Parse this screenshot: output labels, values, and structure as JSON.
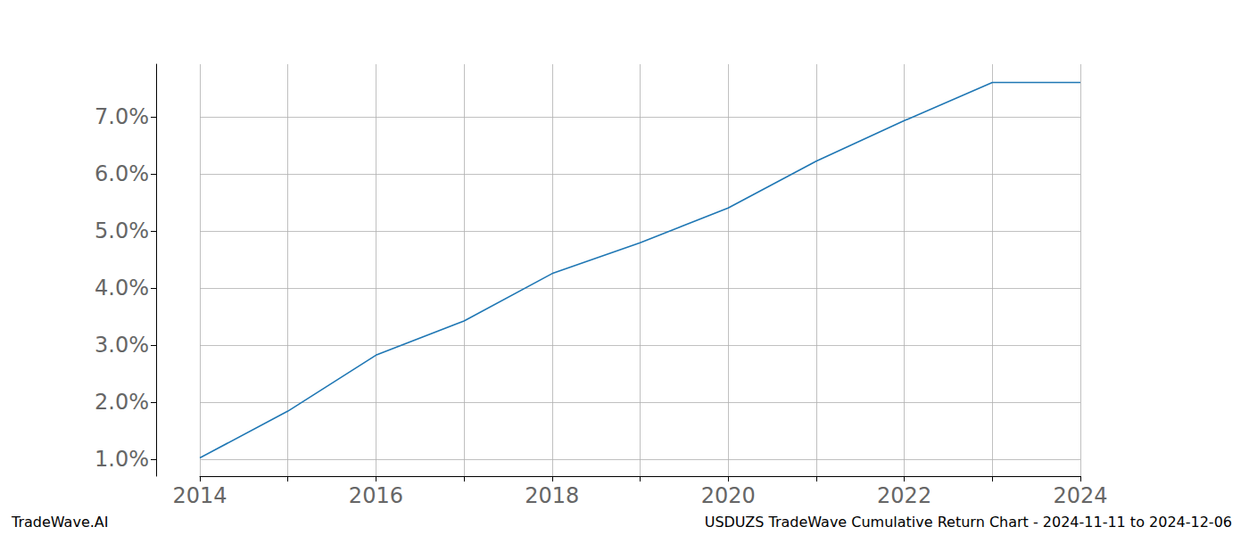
{
  "chart_data": {
    "type": "line",
    "title": "USDUZS TradeWave Cumulative Return Chart - 2024-11-11 to 2024-12-06",
    "annotations": [
      "TradeWave.AI"
    ],
    "categories": [
      "2014",
      null,
      "2016",
      null,
      "2018",
      null,
      "2020",
      null,
      "2022",
      null,
      "2024"
    ],
    "series": [
      {
        "name": "USDUZS",
        "color": "#1f77b4",
        "values": [
          1.02,
          1.84,
          2.82,
          3.42,
          4.25,
          4.79,
          5.4,
          6.22,
          6.93,
          7.6,
          7.6
        ]
      }
    ],
    "ylim": [
      0.7,
      7.92
    ],
    "yticks": [
      {
        "value": 1,
        "label": "1.0%"
      },
      {
        "value": 2,
        "label": "2.0%"
      },
      {
        "value": 3,
        "label": "3.0%"
      },
      {
        "value": 4,
        "label": "4.0%"
      },
      {
        "value": 5,
        "label": "5.0%"
      },
      {
        "value": 6,
        "label": "6.0%"
      },
      {
        "value": 7,
        "label": "7.0%"
      }
    ],
    "grid": true
  }
}
